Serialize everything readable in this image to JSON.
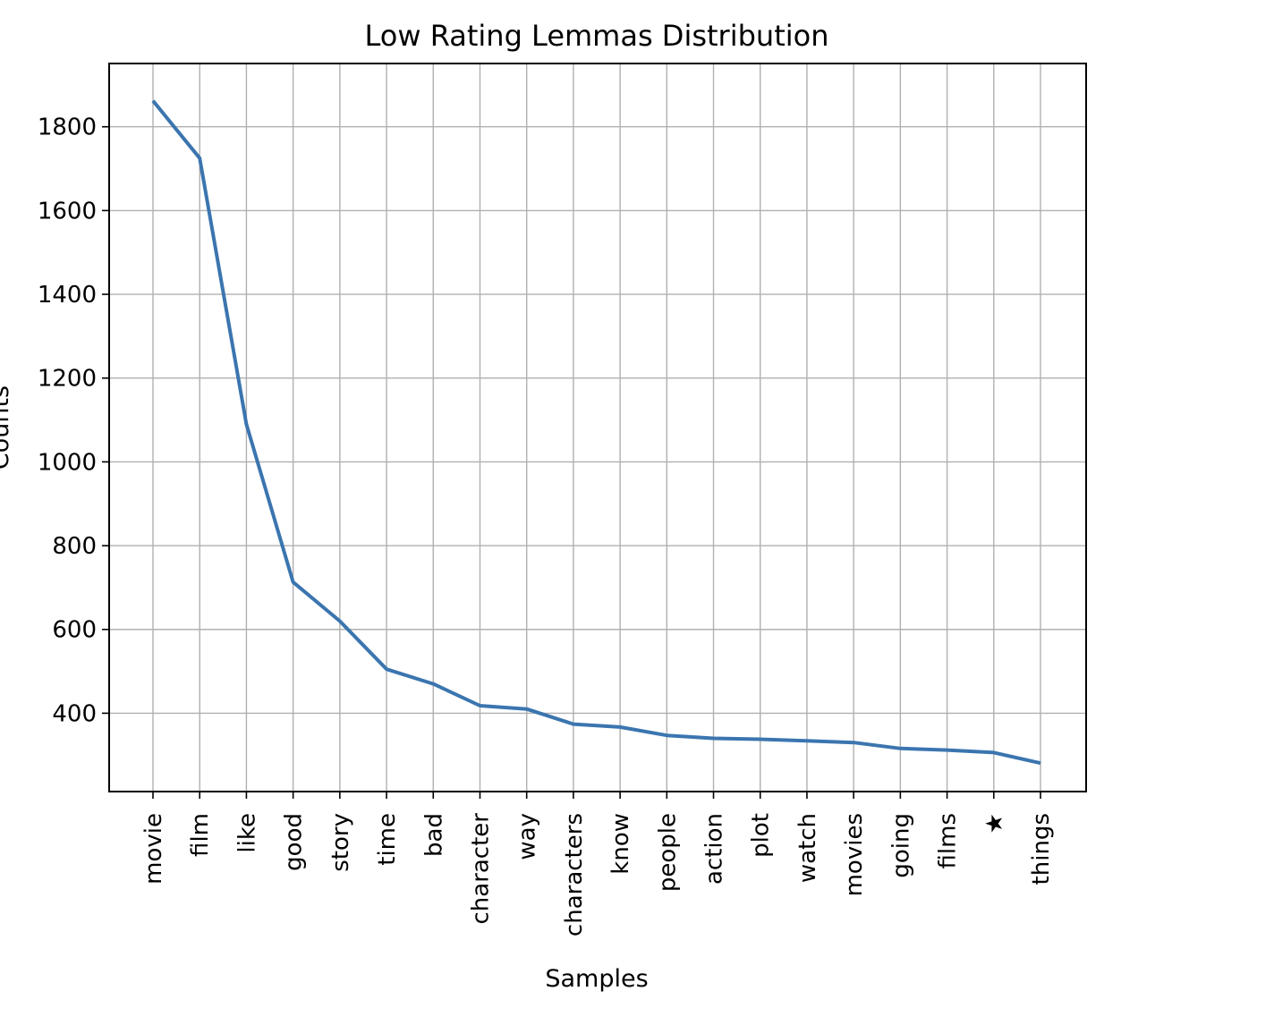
{
  "chart_data": {
    "type": "line",
    "title": "Low Rating Lemmas Distribution",
    "xlabel": "Samples",
    "ylabel": "Counts",
    "categories": [
      "movie",
      "film",
      "like",
      "good",
      "story",
      "time",
      "bad",
      "character",
      "way",
      "characters",
      "know",
      "people",
      "action",
      "plot",
      "watch",
      "movies",
      "going",
      "films",
      "★",
      "things"
    ],
    "values": [
      1862,
      1725,
      1090,
      713,
      620,
      505,
      470,
      418,
      410,
      374,
      367,
      347,
      340,
      338,
      334,
      330,
      316,
      312,
      306,
      281
    ],
    "yticks": [
      400,
      600,
      800,
      1000,
      1200,
      1400,
      1600,
      1800
    ],
    "ylim": [
      213,
      1951
    ],
    "grid": true,
    "color": "#3b75af"
  }
}
